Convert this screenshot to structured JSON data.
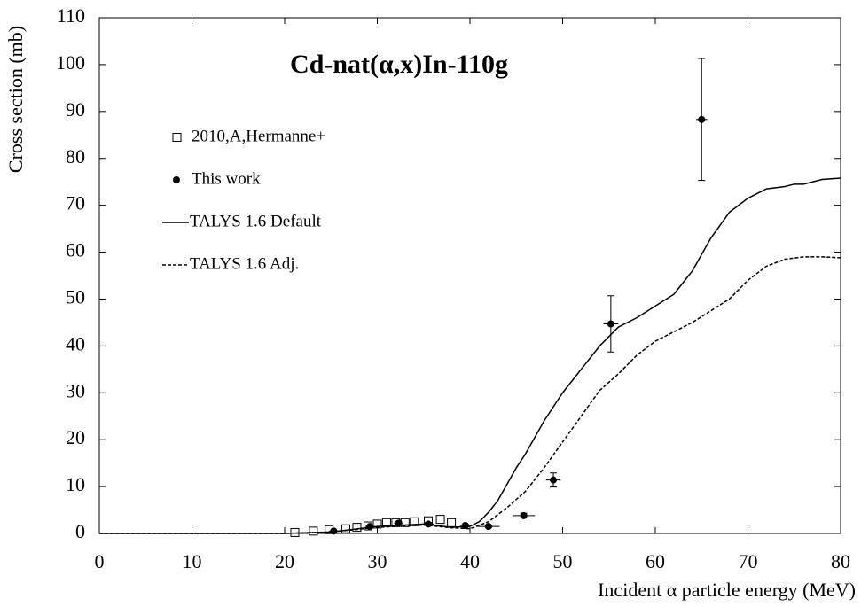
{
  "chart_data": {
    "type": "scatter",
    "title": "Cd-nat(α,x)In-110g",
    "x_label": "Incident α particle energy (MeV)",
    "y_label": "Cross section (mb)",
    "xlim": [
      0,
      80
    ],
    "ylim": [
      0,
      110
    ],
    "xticks": [
      0,
      10,
      20,
      30,
      40,
      50,
      60,
      70,
      80
    ],
    "yticks": [
      0,
      10,
      20,
      30,
      40,
      50,
      60,
      70,
      80,
      90,
      100,
      110
    ],
    "series": [
      {
        "name": "2010,A,Hermanne+",
        "kind": "scatter",
        "marker": "square",
        "color": "#000000",
        "x": [
          21.1,
          23.1,
          24.8,
          26.6,
          27.8,
          29.0,
          30.0,
          31.0,
          32.0,
          33.0,
          34.0,
          35.5,
          36.8,
          38.0
        ],
        "values": [
          0.2,
          0.5,
          0.8,
          1.0,
          1.3,
          1.6,
          2.0,
          2.3,
          2.3,
          2.3,
          2.5,
          2.7,
          3.0,
          2.3
        ]
      },
      {
        "name": "This work",
        "kind": "scatter",
        "marker": "circle",
        "color": "#000000",
        "x": [
          25.3,
          29.2,
          32.3,
          35.5,
          39.5,
          42.0,
          45.8,
          49.0,
          55.2,
          65.0
        ],
        "values": [
          0.5,
          1.5,
          2.2,
          2.0,
          1.7,
          1.5,
          3.8,
          11.4,
          44.7,
          88.3
        ],
        "xerr": [
          0.5,
          0.5,
          0.5,
          0.6,
          0.6,
          1.2,
          1.2,
          0.8,
          0.8,
          0.6
        ],
        "yerr": [
          0.1,
          0.2,
          0.3,
          0.3,
          0.2,
          0.2,
          0.5,
          1.5,
          6.0,
          13.0
        ]
      },
      {
        "name": "TALYS 1.6 Default",
        "kind": "line",
        "dash": false,
        "color": "#000000",
        "x": [
          0,
          20,
          25,
          30,
          35,
          38,
          40,
          41,
          42,
          43,
          44,
          45,
          46,
          48,
          50,
          52,
          54,
          56,
          58,
          60,
          62,
          64,
          66,
          68,
          70,
          72,
          74,
          75,
          76,
          78,
          80
        ],
        "values": [
          0,
          0,
          0.3,
          1.5,
          2.0,
          1.3,
          1.5,
          2.5,
          4.5,
          7,
          10.5,
          14,
          17,
          24,
          30,
          35,
          40,
          44,
          46,
          48.5,
          51,
          56,
          63,
          68.5,
          71.5,
          73.5,
          74,
          74.5,
          74.5,
          75.5,
          75.8
        ]
      },
      {
        "name": "TALYS 1.6 Adj.",
        "kind": "line",
        "dash": true,
        "color": "#000000",
        "x": [
          0,
          20,
          25,
          30,
          35,
          38,
          40,
          42,
          43,
          44,
          46,
          48,
          50,
          52,
          54,
          56,
          58,
          60,
          62,
          64,
          66,
          68,
          70,
          72,
          74,
          76,
          78,
          80
        ],
        "values": [
          0,
          0,
          0.3,
          1.3,
          1.8,
          1.2,
          1.0,
          2.5,
          4,
          5.5,
          9,
          14,
          19.5,
          25,
          30.5,
          34,
          38,
          41,
          43,
          45,
          47.5,
          50,
          54,
          57,
          58.5,
          59,
          59,
          58.8
        ]
      }
    ]
  }
}
